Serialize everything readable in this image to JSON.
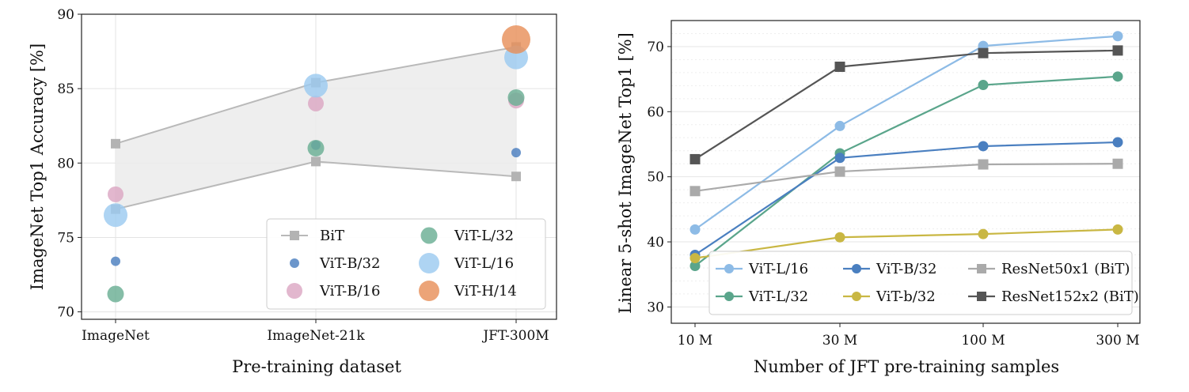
{
  "chart_data": [
    {
      "type": "scatter",
      "xlabel": "Pre-training dataset",
      "ylabel": "ImageNet Top1 Accuracy [%]",
      "categories": [
        "ImageNet",
        "ImageNet-21k",
        "JFT-300M"
      ],
      "ylim": [
        69.5,
        90
      ],
      "yticks": [
        70,
        75,
        80,
        85,
        90
      ],
      "grid": true,
      "legend_position": "bottom-right",
      "bit_band": {
        "name": "BiT",
        "upper": [
          81.3,
          85.4,
          87.8
        ],
        "lower": [
          76.9,
          80.1,
          79.1
        ]
      },
      "series": [
        {
          "name": "ViT-B/32",
          "values": [
            73.4,
            81.2,
            80.7
          ],
          "color": "#4c7fbf"
        },
        {
          "name": "ViT-B/16",
          "values": [
            77.9,
            84.0,
            84.2
          ],
          "color": "#dca7c3"
        },
        {
          "name": "ViT-L/32",
          "values": [
            71.2,
            81.0,
            84.4
          ],
          "color": "#6aae94"
        },
        {
          "name": "ViT-L/16",
          "values": [
            76.5,
            85.2,
            87.1
          ],
          "color": "#9ccbf0"
        },
        {
          "name": "ViT-H/14",
          "values": [
            null,
            null,
            88.3
          ],
          "color": "#e8905a"
        }
      ]
    },
    {
      "type": "line",
      "xlabel": "Number of JFT pre-training samples",
      "ylabel": "Linear 5-shot ImageNet Top1 [%]",
      "x": [
        9,
        30,
        90,
        300
      ],
      "xticks": [
        "10 M",
        "30 M",
        "100 M",
        "300 M"
      ],
      "ylim": [
        27.5,
        74
      ],
      "yticks": [
        30,
        40,
        50,
        60,
        70
      ],
      "grid": true,
      "legend_position": "bottom-right",
      "series": [
        {
          "name": "ViT-L/16",
          "values": [
            41.9,
            57.8,
            70.1,
            71.6
          ],
          "color": "#8dbbe6",
          "marker": "circle"
        },
        {
          "name": "ViT-L/32",
          "values": [
            36.3,
            53.6,
            64.1,
            65.4
          ],
          "color": "#5aa58b",
          "marker": "circle"
        },
        {
          "name": "ViT-B/32",
          "values": [
            38.0,
            52.9,
            54.7,
            55.3
          ],
          "color": "#4a7fc0",
          "marker": "circle"
        },
        {
          "name": "ViT-b/32",
          "values": [
            37.5,
            40.7,
            41.2,
            41.9
          ],
          "color": "#c9b743",
          "marker": "circle"
        },
        {
          "name": "ResNet50x1 (BiT)",
          "values": [
            47.8,
            50.8,
            51.9,
            52.0
          ],
          "color": "#aaaaaa",
          "marker": "square"
        },
        {
          "name": "ResNet152x2 (BiT)",
          "values": [
            52.7,
            66.9,
            69.0,
            69.4
          ],
          "color": "#555555",
          "marker": "square"
        }
      ]
    }
  ]
}
